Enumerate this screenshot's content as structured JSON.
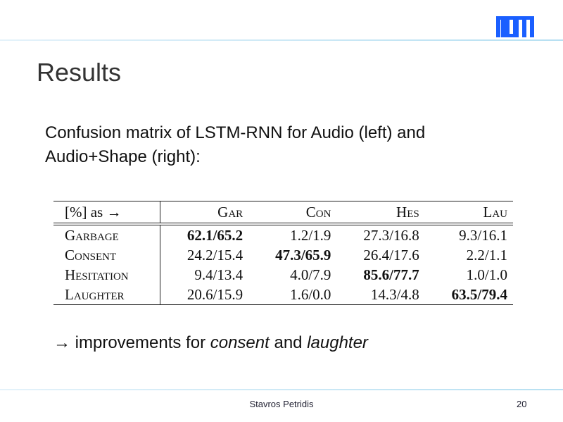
{
  "brand": {
    "logo_text": "TUM",
    "color": "#1a5fff"
  },
  "title": "Results",
  "body": {
    "line1": "Confusion matrix of LSTM-RNN for Audio (left) and",
    "line2": "Audio+Shape (right):"
  },
  "table": {
    "corner": "[%] as →",
    "columns": [
      "Gar",
      "Con",
      "Hes",
      "Lau"
    ],
    "rows": [
      {
        "label": "Garbage",
        "cells": [
          "62.1/65.2",
          "1.2/1.9",
          "27.3/16.8",
          "9.3/16.1"
        ],
        "bold_index": 0
      },
      {
        "label": "Consent",
        "cells": [
          "24.2/15.4",
          "47.3/65.9",
          "26.4/17.6",
          "2.2/1.1"
        ],
        "bold_index": 1
      },
      {
        "label": "Hesitation",
        "cells": [
          "9.4/13.4",
          "4.0/7.9",
          "85.6/77.7",
          "1.0/1.0"
        ],
        "bold_index": 2
      },
      {
        "label": "Laughter",
        "cells": [
          "20.6/15.9",
          "1.6/0.0",
          "14.3/4.8",
          "63.5/79.4"
        ],
        "bold_index": 3
      }
    ]
  },
  "conclusion": {
    "arrow": "→",
    "pre": " improvements for ",
    "em1": "consent",
    "mid": " and ",
    "em2": "laughter"
  },
  "footer": {
    "author": "Stavros Petridis",
    "page": "20"
  }
}
